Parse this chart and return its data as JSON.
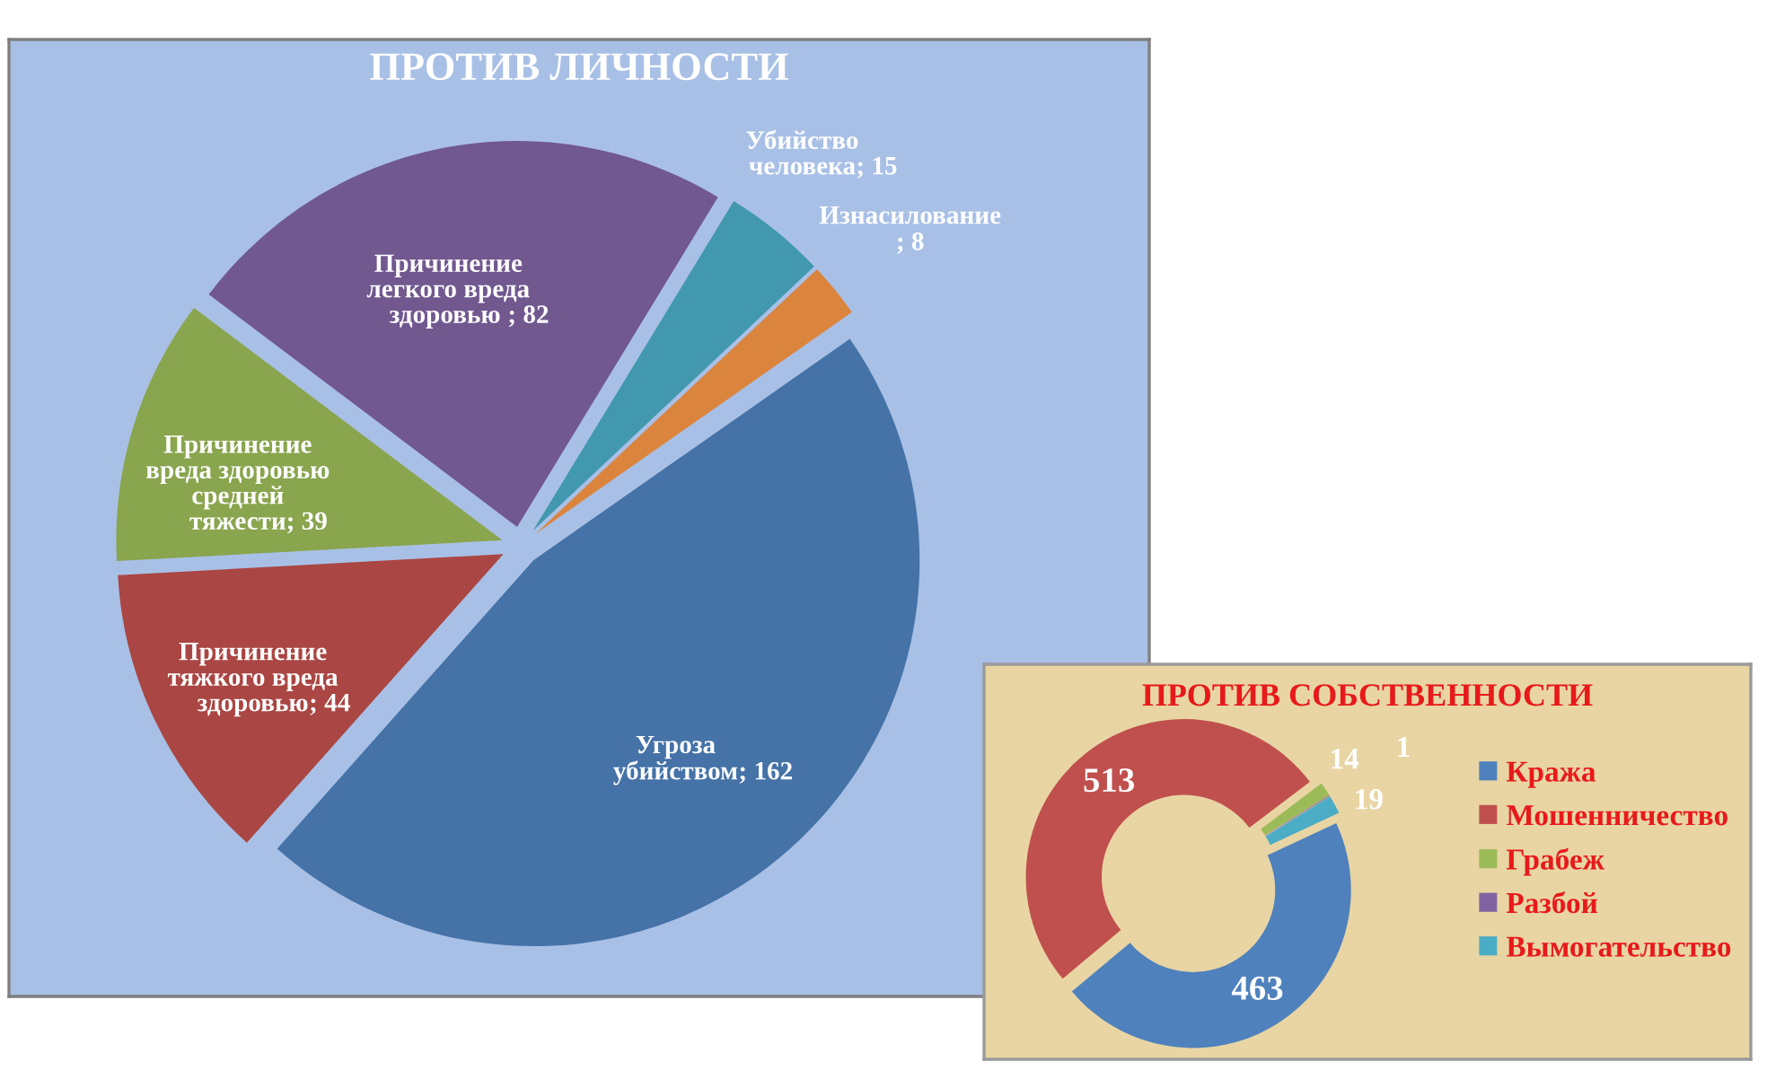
{
  "chart_data": [
    {
      "type": "pie",
      "title": "ПРОТИВ ЛИЧНОСТИ",
      "categories": [
        "Угроза\nубийством",
        "Причинение\nтяжкого вреда\nздоровью",
        "Причинение\nвреда здоровью\nсредней\nтяжести",
        "Причинение\nлегкого вреда\nздоровью ",
        "Убийство\nчеловека",
        "Изнасилование"
      ],
      "values": [
        162,
        44,
        39,
        82,
        15,
        8
      ],
      "value_labels": [
        "; 162",
        "; 44",
        "; 39",
        "; 82",
        "; 15",
        "; 8"
      ],
      "colors": [
        "#4572a7",
        "#aa4643",
        "#89a54e",
        "#71588f",
        "#4198af",
        "#db843d"
      ]
    },
    {
      "type": "donut",
      "title": "ПРОТИВ СОБСТВЕННОСТИ",
      "categories": [
        "Кража",
        "Мошенничество",
        "Грабеж",
        "Разбой",
        "Вымогательство"
      ],
      "values": [
        463,
        513,
        14,
        1,
        19
      ],
      "colors": [
        "#4f81bd",
        "#c0504d",
        "#9bbb59",
        "#8064a2",
        "#4bacc6"
      ],
      "data_labels": true,
      "legend": "right"
    }
  ]
}
